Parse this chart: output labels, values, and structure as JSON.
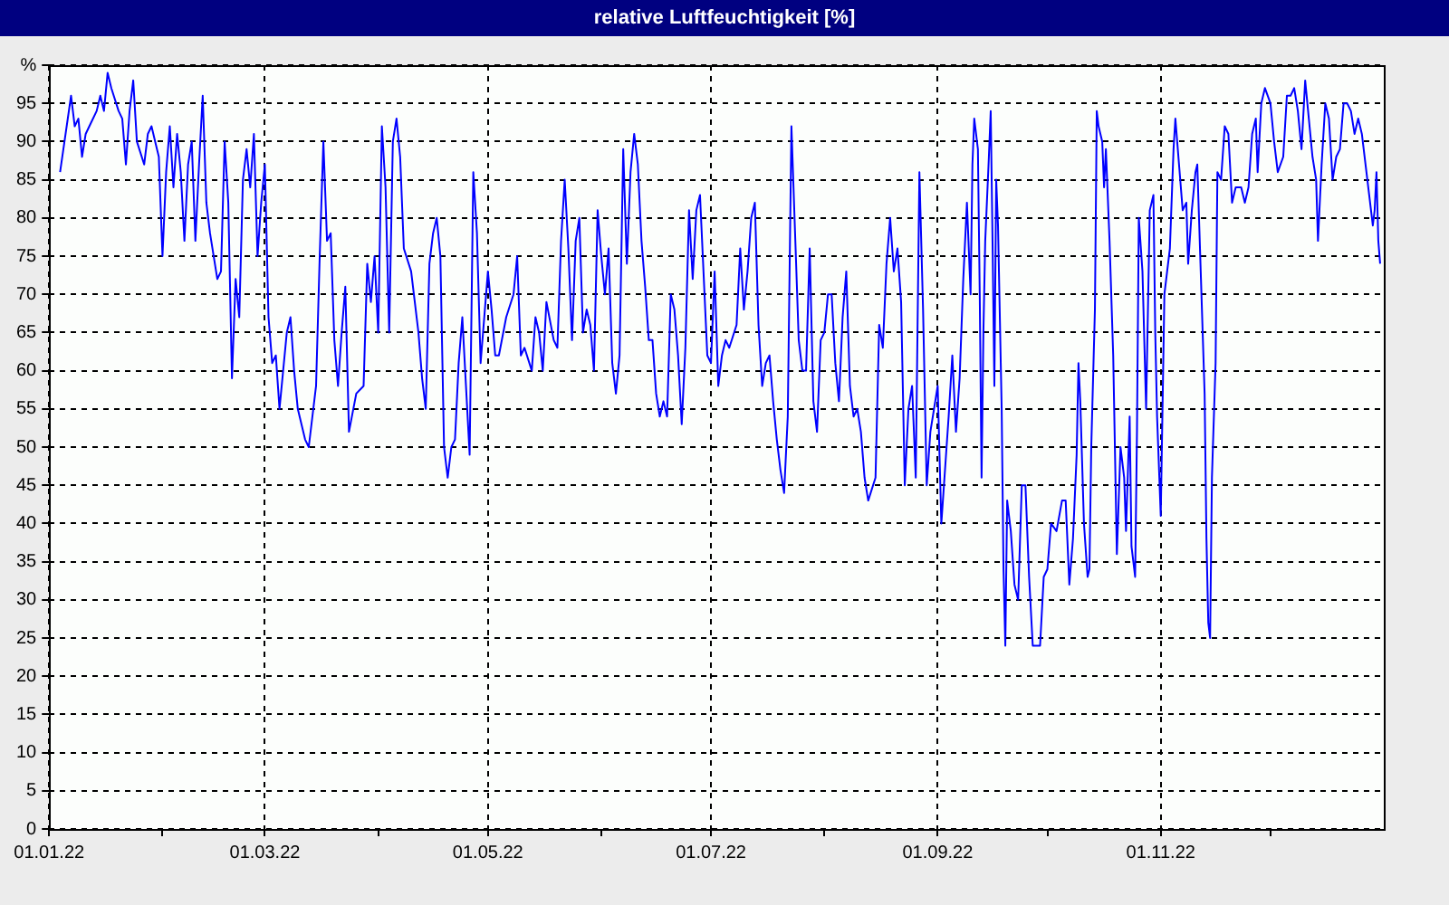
{
  "chart_data": {
    "type": "line",
    "title": "relative Luftfeuchtigkeit [%]",
    "xlim": [
      "2022-01-01",
      "2023-01-01"
    ],
    "xticks": [
      {
        "value": "2022-01-01",
        "label": "01.01.22"
      },
      {
        "value": "2022-02-01",
        "label": null
      },
      {
        "value": "2022-03-01",
        "label": "01.03.22"
      },
      {
        "value": "2022-04-01",
        "label": null
      },
      {
        "value": "2022-05-01",
        "label": "01.05.22"
      },
      {
        "value": "2022-06-01",
        "label": null
      },
      {
        "value": "2022-07-01",
        "label": "01.07.22"
      },
      {
        "value": "2022-08-01",
        "label": null
      },
      {
        "value": "2022-09-01",
        "label": "01.09.22"
      },
      {
        "value": "2022-10-01",
        "label": null
      },
      {
        "value": "2022-11-01",
        "label": "01.11.22"
      },
      {
        "value": "2022-12-01",
        "label": null
      }
    ],
    "ylim": [
      0,
      100
    ],
    "yticks": [
      0,
      5,
      10,
      15,
      20,
      25,
      30,
      35,
      40,
      45,
      50,
      55,
      60,
      65,
      70,
      75,
      80,
      85,
      90,
      95,
      {
        "value": 100,
        "label": "%"
      }
    ],
    "grid": true,
    "x": [
      "2022-01-04",
      "2022-01-07",
      "2022-01-08",
      "2022-01-09",
      "2022-01-10",
      "2022-01-11",
      "2022-01-12",
      "2022-01-14",
      "2022-01-15",
      "2022-01-16",
      "2022-01-17",
      "2022-01-18",
      "2022-01-20",
      "2022-01-21",
      "2022-01-22",
      "2022-01-23",
      "2022-01-24",
      "2022-01-25",
      "2022-01-27",
      "2022-01-28",
      "2022-01-29",
      "2022-01-30",
      "2022-01-31",
      "2022-02-01",
      "2022-02-02",
      "2022-02-03",
      "2022-02-04",
      "2022-02-05",
      "2022-02-06",
      "2022-02-07",
      "2022-02-08",
      "2022-02-09",
      "2022-02-10",
      "2022-02-11",
      "2022-02-12",
      "2022-02-13",
      "2022-02-14",
      "2022-02-16",
      "2022-02-17",
      "2022-02-18",
      "2022-02-19",
      "2022-02-20",
      "2022-02-21",
      "2022-02-22",
      "2022-02-23",
      "2022-02-24",
      "2022-02-25",
      "2022-02-26",
      "2022-02-27",
      "2022-02-28",
      "2022-03-01",
      "2022-03-02",
      "2022-03-03",
      "2022-03-04",
      "2022-03-05",
      "2022-03-06",
      "2022-03-07",
      "2022-03-08",
      "2022-03-09",
      "2022-03-10",
      "2022-03-12",
      "2022-03-13",
      "2022-03-15",
      "2022-03-16",
      "2022-03-17",
      "2022-03-18",
      "2022-03-19",
      "2022-03-20",
      "2022-03-21",
      "2022-03-22",
      "2022-03-23",
      "2022-03-24",
      "2022-03-26",
      "2022-03-28",
      "2022-03-29",
      "2022-03-30",
      "2022-03-31",
      "2022-04-01",
      "2022-04-02",
      "2022-04-03",
      "2022-04-04",
      "2022-04-05",
      "2022-04-06",
      "2022-04-07",
      "2022-04-08",
      "2022-04-10",
      "2022-04-12",
      "2022-04-13",
      "2022-04-14",
      "2022-04-15",
      "2022-04-16",
      "2022-04-17",
      "2022-04-18",
      "2022-04-19",
      "2022-04-20",
      "2022-04-21",
      "2022-04-22",
      "2022-04-23",
      "2022-04-24",
      "2022-04-25",
      "2022-04-26",
      "2022-04-27",
      "2022-04-28",
      "2022-04-29",
      "2022-05-01",
      "2022-05-02",
      "2022-05-03",
      "2022-05-04",
      "2022-05-06",
      "2022-05-08",
      "2022-05-09",
      "2022-05-10",
      "2022-05-11",
      "2022-05-13",
      "2022-05-14",
      "2022-05-15",
      "2022-05-16",
      "2022-05-17",
      "2022-05-19",
      "2022-05-20",
      "2022-05-21",
      "2022-05-22",
      "2022-05-23",
      "2022-05-24",
      "2022-05-25",
      "2022-05-26",
      "2022-05-27",
      "2022-05-28",
      "2022-05-29",
      "2022-05-30",
      "2022-05-31",
      "2022-06-01",
      "2022-06-02",
      "2022-06-03",
      "2022-06-04",
      "2022-06-05",
      "2022-06-06",
      "2022-06-07",
      "2022-06-08",
      "2022-06-09",
      "2022-06-10",
      "2022-06-11",
      "2022-06-12",
      "2022-06-13",
      "2022-06-14",
      "2022-06-15",
      "2022-06-16",
      "2022-06-17",
      "2022-06-18",
      "2022-06-19",
      "2022-06-20",
      "2022-06-21",
      "2022-06-22",
      "2022-06-23",
      "2022-06-24",
      "2022-06-25",
      "2022-06-26",
      "2022-06-27",
      "2022-06-28",
      "2022-06-30",
      "2022-07-01",
      "2022-07-02",
      "2022-07-03",
      "2022-07-04",
      "2022-07-05",
      "2022-07-06",
      "2022-07-08",
      "2022-07-09",
      "2022-07-10",
      "2022-07-11",
      "2022-07-12",
      "2022-07-13",
      "2022-07-14",
      "2022-07-15",
      "2022-07-16",
      "2022-07-17",
      "2022-07-18",
      "2022-07-19",
      "2022-07-20",
      "2022-07-21",
      "2022-07-22",
      "2022-07-23",
      "2022-07-24",
      "2022-07-25",
      "2022-07-26",
      "2022-07-27",
      "2022-07-28",
      "2022-07-29",
      "2022-07-30",
      "2022-07-31",
      "2022-08-01",
      "2022-08-02",
      "2022-08-03",
      "2022-08-04",
      "2022-08-05",
      "2022-08-06",
      "2022-08-07",
      "2022-08-08",
      "2022-08-09",
      "2022-08-10",
      "2022-08-11",
      "2022-08-12",
      "2022-08-13",
      "2022-08-15",
      "2022-08-16",
      "2022-08-17",
      "2022-08-18",
      "2022-08-19",
      "2022-08-20",
      "2022-08-21",
      "2022-08-22",
      "2022-08-23",
      "2022-08-24",
      "2022-08-25",
      "2022-08-26",
      "2022-08-27",
      "2022-08-28",
      "2022-08-29",
      "2022-08-30",
      "2022-09-01",
      "2022-09-02",
      "2022-09-04",
      "2022-09-05",
      "2022-09-06",
      "2022-09-07",
      "2022-09-08",
      "2022-09-09",
      "2022-09-10",
      "2022-09-10T12:00",
      "2022-09-11",
      "2022-09-12",
      "2022-09-12T12:00",
      "2022-09-13",
      "2022-09-13T12:00",
      "2022-09-14",
      "2022-09-15",
      "2022-09-15T12:00",
      "2022-09-16",
      "2022-09-16T12:00",
      "2022-09-17",
      "2022-09-17T12:00",
      "2022-09-18T12:00",
      "2022-09-19",
      "2022-09-19T12:00",
      "2022-09-20",
      "2022-09-21",
      "2022-09-22",
      "2022-09-23",
      "2022-09-24",
      "2022-09-25",
      "2022-09-26",
      "2022-09-27",
      "2022-09-29",
      "2022-09-30",
      "2022-10-01",
      "2022-10-02",
      "2022-10-03T12:00",
      "2022-10-05",
      "2022-10-06",
      "2022-10-07",
      "2022-10-08",
      "2022-10-09",
      "2022-10-09T12:00",
      "2022-10-10",
      "2022-10-11",
      "2022-10-12",
      "2022-10-12T12:00",
      "2022-10-13",
      "2022-10-14",
      "2022-10-14T12:00",
      "2022-10-15",
      "2022-10-16",
      "2022-10-16T12:00",
      "2022-10-17",
      "2022-10-18",
      "2022-10-19",
      "2022-10-20",
      "2022-10-21",
      "2022-10-22",
      "2022-10-22T12:00",
      "2022-10-23T12:00",
      "2022-10-24",
      "2022-10-25",
      "2022-10-25T12:00",
      "2022-10-26",
      "2022-10-27",
      "2022-10-28",
      "2022-10-29",
      "2022-10-30",
      "2022-10-30T12:00",
      "2022-10-31",
      "2022-11-01",
      "2022-11-02",
      "2022-11-03T12:00",
      "2022-11-04T12:00",
      "2022-11-05",
      "2022-11-06",
      "2022-11-07",
      "2022-11-08",
      "2022-11-08T12:00",
      "2022-11-09T12:00",
      "2022-11-10T12:00",
      "2022-11-11",
      "2022-11-12",
      "2022-11-13",
      "2022-11-13T12:00",
      "2022-11-14",
      "2022-11-14T12:00",
      "2022-11-15",
      "2022-11-16",
      "2022-11-16T12:00",
      "2022-11-17T12:00",
      "2022-11-18T12:00",
      "2022-11-19T12:00",
      "2022-11-20T12:00",
      "2022-11-21T12:00",
      "2022-11-23",
      "2022-11-24",
      "2022-11-25",
      "2022-11-26",
      "2022-11-27",
      "2022-11-27T12:00",
      "2022-11-28T12:00",
      "2022-11-29T12:00",
      "2022-12-01",
      "2022-12-02",
      "2022-12-03",
      "2022-12-04T12:00",
      "2022-12-05T12:00",
      "2022-12-06T12:00",
      "2022-12-07T12:00",
      "2022-12-08T12:00",
      "2022-12-09T12:00",
      "2022-12-10T12:00",
      "2022-12-11T12:00",
      "2022-12-12T12:00",
      "2022-12-13T12:00",
      "2022-12-14",
      "2022-12-15",
      "2022-12-16",
      "2022-12-17",
      "2022-12-18",
      "2022-12-19",
      "2022-12-20",
      "2022-12-21",
      "2022-12-22",
      "2022-12-23",
      "2022-12-24",
      "2022-12-25",
      "2022-12-26",
      "2022-12-27",
      "2022-12-28",
      "2022-12-29",
      "2022-12-29T12:00",
      "2022-12-30",
      "2022-12-30T12:00",
      "2022-12-31"
    ],
    "series": [
      {
        "color": "#0000ff",
        "values": [
          86,
          96,
          92,
          93,
          88,
          91,
          92,
          94,
          96,
          94,
          99,
          97,
          94,
          93,
          87,
          94,
          98,
          90,
          87,
          91,
          92,
          90,
          88,
          75,
          86,
          92,
          84,
          91,
          86,
          77,
          87,
          90,
          77,
          87,
          96,
          82,
          78,
          72,
          73,
          90,
          82,
          59,
          72,
          67,
          85,
          89,
          84,
          91,
          75,
          82,
          87,
          67,
          61,
          62,
          55,
          60,
          65,
          67,
          60,
          55,
          51,
          50,
          58,
          75,
          90,
          77,
          78,
          64,
          58,
          65,
          71,
          52,
          57,
          58,
          74,
          69,
          75,
          65,
          92,
          84,
          65,
          90,
          93,
          88,
          76,
          73,
          65,
          59,
          55,
          74,
          78,
          80,
          75,
          50,
          46,
          50,
          51,
          61,
          67,
          58,
          49,
          86,
          78,
          61,
          73,
          68,
          62,
          62,
          67,
          70,
          75,
          62,
          63,
          60,
          67,
          65,
          60,
          69,
          64,
          63,
          77,
          85,
          76,
          64,
          77,
          80,
          65,
          68,
          66,
          60,
          81,
          75,
          70,
          76,
          61,
          57,
          62,
          89,
          74,
          86,
          91,
          87,
          77,
          71,
          64,
          64,
          57,
          54,
          56,
          54,
          70,
          68,
          62,
          53,
          63,
          81,
          72,
          81,
          83,
          62,
          61,
          73,
          58,
          62,
          64,
          63,
          66,
          76,
          68,
          73,
          80,
          82,
          66,
          58,
          61,
          62,
          56,
          51,
          47,
          44,
          54,
          92,
          78,
          64,
          60,
          60,
          76,
          56,
          52,
          64,
          65,
          70,
          70,
          61,
          56,
          67,
          73,
          58,
          54,
          55,
          52,
          46,
          43,
          46,
          66,
          63,
          74,
          80,
          73,
          76,
          69,
          45,
          55,
          58,
          46,
          86,
          68,
          45,
          52,
          58,
          40,
          54,
          62,
          52,
          59,
          72,
          82,
          70,
          87,
          93,
          89,
          70,
          46,
          65,
          77,
          88,
          94,
          77,
          58,
          85,
          79,
          55,
          34,
          24,
          43,
          39,
          32,
          30,
          45,
          45,
          33,
          24,
          24,
          33,
          34,
          40,
          39,
          43,
          43,
          32,
          38,
          49,
          61,
          56,
          40,
          33,
          34,
          50,
          68,
          94,
          92,
          90,
          84,
          89,
          77,
          62,
          36,
          50,
          46,
          39,
          54,
          37,
          33,
          52,
          80,
          73,
          55,
          81,
          83,
          65,
          54,
          41,
          70,
          76,
          89,
          93,
          87,
          81,
          82,
          74,
          81,
          86,
          87,
          72,
          57,
          38,
          27,
          25,
          46,
          61,
          86,
          85,
          92,
          91,
          82,
          84,
          84,
          82,
          84,
          91,
          93,
          86,
          95,
          97,
          95,
          90,
          86,
          88,
          96,
          96,
          97,
          94,
          89,
          98,
          93,
          88,
          85,
          77,
          87,
          95,
          93,
          85,
          88,
          89,
          95,
          95,
          94,
          91,
          93,
          91,
          87,
          83,
          79,
          81,
          86,
          77,
          74
        ]
      }
    ]
  }
}
